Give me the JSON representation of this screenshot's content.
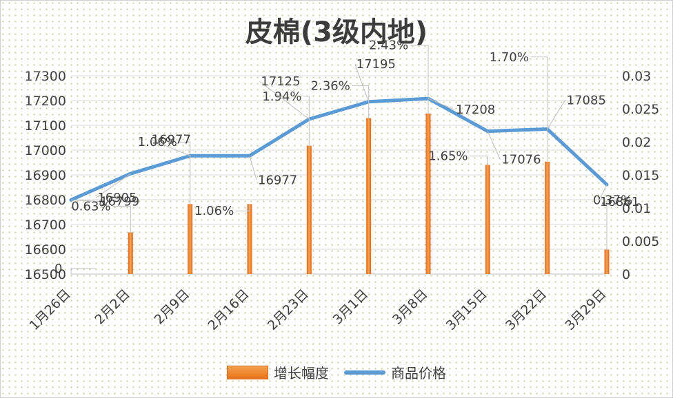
{
  "chart_data": {
    "type": "bar",
    "title": "皮棉(3级内地)",
    "categories": [
      "1月26日",
      "2月2日",
      "2月9日",
      "2月16日",
      "2月23日",
      "3月1日",
      "3月8日",
      "3月15日",
      "3月22日",
      "3月29日"
    ],
    "series": [
      {
        "name": "增长幅度",
        "type": "bar",
        "axis": "right",
        "color": "#ed7d31",
        "values": [
          0,
          0.0063,
          0.0106,
          0.0106,
          0.0194,
          0.0236,
          0.0243,
          0.0165,
          0.017,
          0.0037
        ],
        "labels": [
          "0",
          "0.63%",
          "1.06%",
          "1.06%",
          "1.94%",
          "2.36%",
          "2.43%",
          "1.65%",
          "1.70%",
          "0.37%"
        ]
      },
      {
        "name": "商品价格",
        "type": "line",
        "axis": "left",
        "color": "#5b9bd5",
        "values": [
          16799,
          16905,
          16977,
          16977,
          17125,
          17195,
          17208,
          17076,
          17085,
          16861
        ],
        "labels": [
          "16799",
          "16905",
          "16977",
          "16977",
          "17125",
          "17195",
          "17208",
          "17076",
          "17085",
          "16861"
        ]
      }
    ],
    "y_left": {
      "ylim": [
        16500,
        17300
      ],
      "ticks": [
        "16500",
        "16600",
        "16700",
        "16800",
        "16900",
        "17000",
        "17100",
        "17200",
        "17300"
      ]
    },
    "y_right": {
      "ylim": [
        0,
        0.03
      ],
      "ticks": [
        "0",
        "0.005",
        "0.01",
        "0.015",
        "0.02",
        "0.025",
        "0.03"
      ]
    },
    "grid": true,
    "legend_position": "bottom"
  }
}
